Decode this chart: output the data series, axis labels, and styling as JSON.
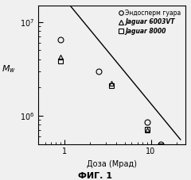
{
  "title": "",
  "xlabel": "Доза (Мрад)",
  "ylabel": "$M_w$",
  "fig_label": "ФИГ. 1",
  "legend_entries": [
    "Эндосперм гуара",
    "Jaguar 6003VT",
    "Jaguar 8000"
  ],
  "legend_markers": [
    "o",
    "^",
    "s"
  ],
  "xlim": [
    0.5,
    25
  ],
  "ylim": [
    500000.0,
    15000000.0
  ],
  "background_color": "#f0f0f0",
  "line_color": "#000000",
  "marker_color": "#000000",
  "series": {
    "endosperm": {
      "x": [
        0.9,
        2.5,
        9.0,
        13.0
      ],
      "y": [
        6500000,
        3000000,
        850000,
        500000
      ]
    },
    "jaguar6003": {
      "x": [
        0.9,
        3.5,
        9.0,
        13.0,
        18.0
      ],
      "y": [
        4200000,
        2200000,
        700000,
        420000,
        320000
      ]
    },
    "jaguar8000": {
      "x": [
        0.9,
        3.5,
        9.0,
        13.0,
        18.0
      ],
      "y": [
        3800000,
        2100000,
        720000,
        480000,
        370000
      ]
    }
  },
  "fit_line": {
    "x_start": 0.52,
    "x_end": 22.0,
    "slope": -1.12,
    "intercept_log": 7.25
  },
  "legend_fontsize": 5.5,
  "xlabel_fontsize": 7,
  "ylabel_fontsize": 8,
  "tick_labelsize": 7,
  "marker_size": 5
}
